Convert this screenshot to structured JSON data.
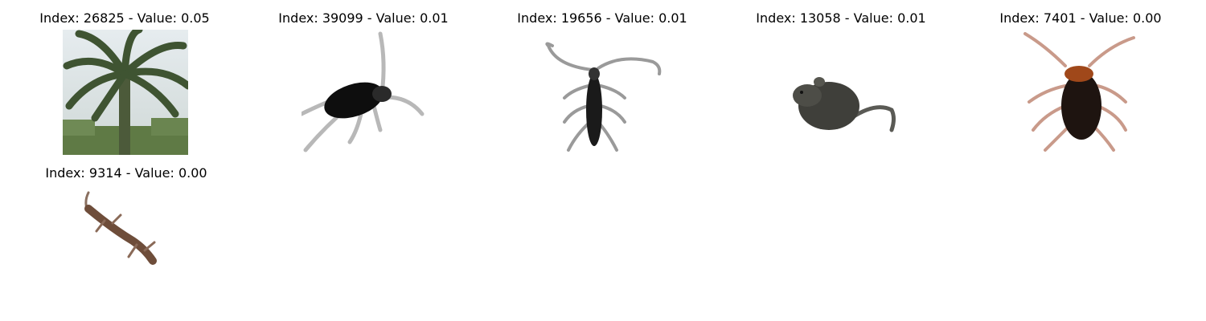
{
  "panels": [
    {
      "title": "Index: 26825 - Value: 0.05",
      "image": "palm-tree-photo"
    },
    {
      "title": "Index: 39099 - Value: 0.01",
      "image": "black-cockroach-photo"
    },
    {
      "title": "Index: 19656 - Value: 0.01",
      "image": "longhorn-beetle-photo"
    },
    {
      "title": "Index: 13058 - Value: 0.01",
      "image": "rat-photo"
    },
    {
      "title": "Index: 7401 - Value: 0.00",
      "image": "brown-cockroach-photo"
    },
    {
      "title": "Index: 9314 - Value: 0.00",
      "image": "lizard-photo"
    }
  ]
}
